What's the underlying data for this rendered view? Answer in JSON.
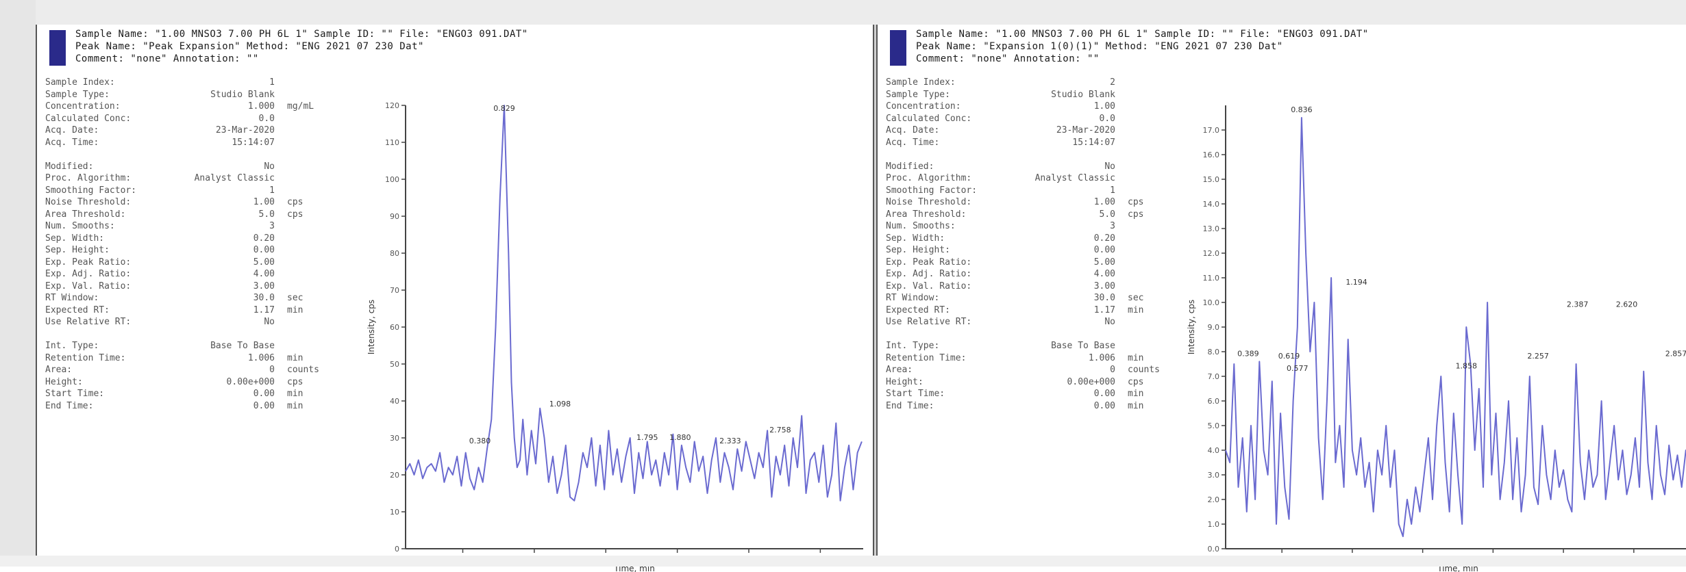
{
  "panels": [
    {
      "header": {
        "line1": "Sample Name: \"1.00 MNSO3 7.00 PH 6L 1\"   Sample ID: \"\"   File: \"ENGO3 091.DAT\"",
        "line2": "Peak Name: \"Peak Expansion\"   Method: \"ENG 2021 07 230 Dat\"",
        "line3": "Comment: \"none\"   Annotation: \"\""
      },
      "params": [
        {
          "label": "Sample Index:",
          "value": "1",
          "unit": ""
        },
        {
          "label": "Sample Type:",
          "value": "Studio Blank",
          "unit": ""
        },
        {
          "label": "Concentration:",
          "value": "1.000",
          "unit": "mg/mL"
        },
        {
          "label": "Calculated Conc:",
          "value": "0.0",
          "unit": ""
        },
        {
          "label": "Acq. Date:",
          "value": "23-Mar-2020",
          "unit": ""
        },
        {
          "label": "Acq. Time:",
          "value": "15:14:07",
          "unit": ""
        },
        {
          "label": "",
          "value": "",
          "unit": ""
        },
        {
          "label": "Modified:",
          "value": "No",
          "unit": ""
        },
        {
          "label": "Proc. Algorithm:",
          "value": "Analyst Classic",
          "unit": ""
        },
        {
          "label": "Smoothing Factor:",
          "value": "1",
          "unit": ""
        },
        {
          "label": "Noise Threshold:",
          "value": "1.00",
          "unit": "cps"
        },
        {
          "label": "Area Threshold:",
          "value": "5.0",
          "unit": "cps"
        },
        {
          "label": " Num. Smooths:",
          "value": "3",
          "unit": ""
        },
        {
          "label": "Sep. Width:",
          "value": "0.20",
          "unit": ""
        },
        {
          "label": "Sep. Height:",
          "value": "0.00",
          "unit": ""
        },
        {
          "label": "Exp. Peak Ratio:",
          "value": "5.00",
          "unit": ""
        },
        {
          "label": "Exp. Adj. Ratio:",
          "value": "4.00",
          "unit": ""
        },
        {
          "label": "Exp. Val. Ratio:",
          "value": "3.00",
          "unit": ""
        },
        {
          "label": "RT Window:",
          "value": "30.0",
          "unit": "sec"
        },
        {
          "label": "Expected RT:",
          "value": "1.17",
          "unit": "min"
        },
        {
          "label": "Use Relative RT:",
          "value": "No",
          "unit": ""
        },
        {
          "label": "",
          "value": "",
          "unit": ""
        },
        {
          "label": "Int. Type:",
          "value": "Base To Base",
          "unit": ""
        },
        {
          "label": "Retention Time:",
          "value": "1.006",
          "unit": "min"
        },
        {
          "label": "Area:",
          "value": "0",
          "unit": "counts"
        },
        {
          "label": "Height:",
          "value": "0.00e+000",
          "unit": "cps"
        },
        {
          "label": "Start Time:",
          "value": "0.00",
          "unit": "min"
        },
        {
          "label": "End Time:",
          "value": "0.00",
          "unit": "min"
        }
      ]
    },
    {
      "header": {
        "line1": "Sample Name: \"1.00 MNSO3 7.00 PH 6L 1\"   Sample ID: \"\"   File: \"ENGO3 091.DAT\"",
        "line2": "Peak Name: \"Expansion 1(0)(1)\"   Method: \"ENG 2021 07 230 Dat\"",
        "line3": "Comment: \"none\"   Annotation: \"\""
      },
      "params": [
        {
          "label": "Sample Index:",
          "value": "2",
          "unit": ""
        },
        {
          "label": "Sample Type:",
          "value": "Studio Blank",
          "unit": ""
        },
        {
          "label": "Concentration:",
          "value": "1.00",
          "unit": ""
        },
        {
          "label": "Calculated Conc:",
          "value": "0.0",
          "unit": ""
        },
        {
          "label": "Acq. Date:",
          "value": "23-Mar-2020",
          "unit": ""
        },
        {
          "label": "Acq. Time:",
          "value": "15:14:07",
          "unit": ""
        },
        {
          "label": "",
          "value": "",
          "unit": ""
        },
        {
          "label": "Modified:",
          "value": "No",
          "unit": ""
        },
        {
          "label": "Proc. Algorithm:",
          "value": "Analyst Classic",
          "unit": ""
        },
        {
          "label": "Smoothing Factor:",
          "value": "1",
          "unit": ""
        },
        {
          "label": "Noise Threshold:",
          "value": "1.00",
          "unit": "cps"
        },
        {
          "label": "Area Threshold:",
          "value": "5.0",
          "unit": "cps"
        },
        {
          "label": " Num. Smooths:",
          "value": "3",
          "unit": ""
        },
        {
          "label": "Sep. Width:",
          "value": "0.20",
          "unit": ""
        },
        {
          "label": "Sep. Height:",
          "value": "0.00",
          "unit": ""
        },
        {
          "label": "Exp. Peak Ratio:",
          "value": "5.00",
          "unit": ""
        },
        {
          "label": "Exp. Adj. Ratio:",
          "value": "4.00",
          "unit": ""
        },
        {
          "label": "Exp. Val. Ratio:",
          "value": "3.00",
          "unit": ""
        },
        {
          "label": "RT Window:",
          "value": "30.0",
          "unit": "sec"
        },
        {
          "label": "Expected RT:",
          "value": "1.17",
          "unit": "min"
        },
        {
          "label": "Use Relative RT:",
          "value": "No",
          "unit": ""
        },
        {
          "label": "",
          "value": "",
          "unit": ""
        },
        {
          "label": "Int. Type:",
          "value": "Base To Base",
          "unit": ""
        },
        {
          "label": "Retention Time:",
          "value": "1.006",
          "unit": "min"
        },
        {
          "label": "Area:",
          "value": "0",
          "unit": "counts"
        },
        {
          "label": "Height:",
          "value": "0.00e+000",
          "unit": "cps"
        },
        {
          "label": "Start Time:",
          "value": "0.00",
          "unit": "min"
        },
        {
          "label": "End Time:",
          "value": "0.00",
          "unit": "min"
        }
      ]
    }
  ],
  "chart_data": [
    {
      "type": "line",
      "title": "",
      "xlabel": "Time, min",
      "ylabel": "Intensity, cps",
      "color": "#6a6ad0",
      "xlim": [
        0.1,
        3.3
      ],
      "ylim": [
        0,
        120
      ],
      "xticks": [
        "0.5",
        "1.0",
        "1.5",
        "2.0",
        "2.5",
        "3.0"
      ],
      "yticks": [
        "0",
        "10",
        "20",
        "30",
        "40",
        "50",
        "60",
        "70",
        "80",
        "90",
        "100",
        "110",
        "120"
      ],
      "x": [
        0.1,
        0.13,
        0.16,
        0.19,
        0.22,
        0.25,
        0.28,
        0.31,
        0.34,
        0.37,
        0.4,
        0.43,
        0.46,
        0.49,
        0.52,
        0.55,
        0.58,
        0.61,
        0.64,
        0.67,
        0.7,
        0.73,
        0.76,
        0.79,
        0.82,
        0.84,
        0.86,
        0.88,
        0.9,
        0.92,
        0.95,
        0.98,
        1.01,
        1.04,
        1.07,
        1.1,
        1.13,
        1.16,
        1.19,
        1.22,
        1.25,
        1.28,
        1.31,
        1.34,
        1.37,
        1.4,
        1.43,
        1.46,
        1.49,
        1.52,
        1.55,
        1.58,
        1.61,
        1.64,
        1.67,
        1.7,
        1.73,
        1.76,
        1.79,
        1.82,
        1.85,
        1.88,
        1.91,
        1.94,
        1.97,
        2.0,
        2.03,
        2.06,
        2.09,
        2.12,
        2.15,
        2.18,
        2.21,
        2.24,
        2.27,
        2.3,
        2.33,
        2.36,
        2.39,
        2.42,
        2.45,
        2.48,
        2.51,
        2.54,
        2.57,
        2.6,
        2.63,
        2.66,
        2.69,
        2.72,
        2.75,
        2.78,
        2.81,
        2.84,
        2.87,
        2.9,
        2.93,
        2.96,
        2.99,
        3.02,
        3.05,
        3.08,
        3.11,
        3.14,
        3.17,
        3.2,
        3.23,
        3.26,
        3.29
      ],
      "y": [
        21,
        23,
        20,
        24,
        19,
        22,
        23,
        21,
        26,
        18,
        22,
        20,
        25,
        17,
        26,
        19,
        16,
        22,
        18,
        27,
        35,
        60,
        95,
        120,
        80,
        45,
        30,
        22,
        24,
        35,
        20,
        32,
        23,
        38,
        30,
        18,
        25,
        15,
        20,
        28,
        14,
        13,
        18,
        26,
        22,
        30,
        17,
        28,
        16,
        32,
        20,
        27,
        18,
        25,
        30,
        15,
        26,
        19,
        29,
        20,
        24,
        17,
        26,
        20,
        31,
        16,
        28,
        22,
        18,
        29,
        21,
        25,
        15,
        24,
        30,
        18,
        26,
        22,
        16,
        27,
        21,
        29,
        24,
        19,
        26,
        22,
        32,
        14,
        25,
        20,
        28,
        17,
        30,
        22,
        36,
        15,
        24,
        26,
        18,
        28,
        14,
        20,
        34,
        13,
        22,
        28,
        16,
        26,
        29
      ],
      "peak_labels": [
        {
          "x": 0.62,
          "y": 27,
          "text": "0.380"
        },
        {
          "x": 0.79,
          "y": 120,
          "text": "0.829"
        },
        {
          "x": 1.18,
          "y": 37,
          "text": "1.098"
        },
        {
          "x": 1.79,
          "y": 28,
          "text": "1.795"
        },
        {
          "x": 2.02,
          "y": 28,
          "text": "1.880"
        },
        {
          "x": 2.37,
          "y": 27,
          "text": "2.333"
        },
        {
          "x": 2.72,
          "y": 30,
          "text": "2.758"
        }
      ]
    },
    {
      "type": "line",
      "title": "",
      "xlabel": "Time, min",
      "ylabel": "Intensity, cps",
      "color": "#6a6ad0",
      "xlim": [
        0.1,
        3.4
      ],
      "ylim": [
        0,
        18
      ],
      "xticks": [
        "0.5",
        "1.0",
        "1.5",
        "2.0",
        "2.5",
        "3.0"
      ],
      "yticks": [
        "0.0",
        "1.0",
        "2.0",
        "3.0",
        "4.0",
        "5.0",
        "6.0",
        "7.0",
        "8.0",
        "9.0",
        "10.0",
        "11.0",
        "12.0",
        "13.0",
        "14.0",
        "15.0",
        "16.0",
        "17.0"
      ],
      "x": [
        0.1,
        0.13,
        0.16,
        0.19,
        0.22,
        0.25,
        0.28,
        0.31,
        0.34,
        0.37,
        0.4,
        0.43,
        0.46,
        0.49,
        0.52,
        0.55,
        0.58,
        0.61,
        0.64,
        0.67,
        0.7,
        0.73,
        0.76,
        0.79,
        0.82,
        0.85,
        0.88,
        0.91,
        0.94,
        0.97,
        1.0,
        1.03,
        1.06,
        1.09,
        1.12,
        1.15,
        1.18,
        1.21,
        1.24,
        1.27,
        1.3,
        1.33,
        1.36,
        1.39,
        1.42,
        1.45,
        1.48,
        1.51,
        1.54,
        1.57,
        1.6,
        1.63,
        1.66,
        1.69,
        1.72,
        1.75,
        1.78,
        1.81,
        1.84,
        1.87,
        1.9,
        1.93,
        1.96,
        1.99,
        2.02,
        2.05,
        2.08,
        2.11,
        2.14,
        2.17,
        2.2,
        2.23,
        2.26,
        2.29,
        2.32,
        2.35,
        2.38,
        2.41,
        2.44,
        2.47,
        2.5,
        2.53,
        2.56,
        2.59,
        2.62,
        2.65,
        2.68,
        2.71,
        2.74,
        2.77,
        2.8,
        2.83,
        2.86,
        2.89,
        2.92,
        2.95,
        2.98,
        3.01,
        3.04,
        3.07,
        3.1,
        3.13,
        3.16,
        3.19,
        3.22,
        3.25,
        3.28,
        3.31,
        3.34,
        3.37,
        3.4
      ],
      "y": [
        4.0,
        3.5,
        7.5,
        2.5,
        4.5,
        1.5,
        5.0,
        2.0,
        7.6,
        4.0,
        3.0,
        6.8,
        1.0,
        5.5,
        2.5,
        1.2,
        6.0,
        9.0,
        17.5,
        12.0,
        8.0,
        10.0,
        4.5,
        2.0,
        6.0,
        11.0,
        3.5,
        5.0,
        2.5,
        8.5,
        4.0,
        3.0,
        4.5,
        2.5,
        3.5,
        1.5,
        4.0,
        3.0,
        5.0,
        2.5,
        4.0,
        1.0,
        0.5,
        2.0,
        1.0,
        2.5,
        1.5,
        3.0,
        4.5,
        2.0,
        5.0,
        7.0,
        3.5,
        1.5,
        5.5,
        3.0,
        1.0,
        9.0,
        7.5,
        4.0,
        6.5,
        2.5,
        10.0,
        3.0,
        5.5,
        2.0,
        3.5,
        6.0,
        2.0,
        4.5,
        1.5,
        3.0,
        7.0,
        2.5,
        1.8,
        5.0,
        3.0,
        2.0,
        4.0,
        2.5,
        3.2,
        2.0,
        1.5,
        7.5,
        3.5,
        2.0,
        4.0,
        2.5,
        3.0,
        6.0,
        2.0,
        3.5,
        5.0,
        2.8,
        4.0,
        2.2,
        3.0,
        4.5,
        2.5,
        7.2,
        3.5,
        2.0,
        5.0,
        3.0,
        2.2,
        4.2,
        2.8,
        3.8,
        2.5,
        4.0,
        3.0
      ],
      "peak_labels": [
        {
          "x": 0.26,
          "y": 7.6,
          "text": "0.389"
        },
        {
          "x": 0.55,
          "y": 7.5,
          "text": "0.619"
        },
        {
          "x": 0.61,
          "y": 7.0,
          "text": "0.577"
        },
        {
          "x": 0.64,
          "y": 17.5,
          "text": "0.836"
        },
        {
          "x": 1.03,
          "y": 10.5,
          "text": "1.194"
        },
        {
          "x": 1.81,
          "y": 7.1,
          "text": "1.858"
        },
        {
          "x": 2.32,
          "y": 7.5,
          "text": "2.257"
        },
        {
          "x": 2.6,
          "y": 9.6,
          "text": "2.387"
        },
        {
          "x": 2.95,
          "y": 9.6,
          "text": "2.620"
        },
        {
          "x": 3.3,
          "y": 7.6,
          "text": "2.857"
        }
      ]
    }
  ]
}
